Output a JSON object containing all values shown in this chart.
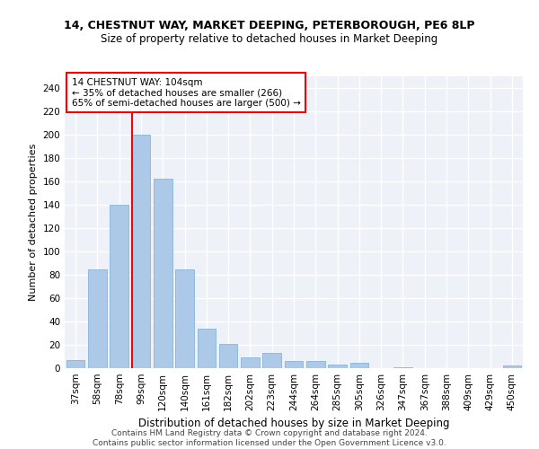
{
  "title1": "14, CHESTNUT WAY, MARKET DEEPING, PETERBOROUGH, PE6 8LP",
  "title2": "Size of property relative to detached houses in Market Deeping",
  "xlabel": "Distribution of detached houses by size in Market Deeping",
  "ylabel": "Number of detached properties",
  "categories": [
    "37sqm",
    "58sqm",
    "78sqm",
    "99sqm",
    "120sqm",
    "140sqm",
    "161sqm",
    "182sqm",
    "202sqm",
    "223sqm",
    "244sqm",
    "264sqm",
    "285sqm",
    "305sqm",
    "326sqm",
    "347sqm",
    "367sqm",
    "388sqm",
    "409sqm",
    "429sqm",
    "450sqm"
  ],
  "values": [
    7,
    85,
    140,
    200,
    162,
    85,
    34,
    21,
    9,
    13,
    6,
    6,
    3,
    5,
    0,
    1,
    0,
    0,
    0,
    0,
    2
  ],
  "bar_color": "#adc9e8",
  "bar_edge_color": "#8ab4d8",
  "vline_color": "red",
  "vline_pos": 3.5,
  "ylim": [
    0,
    250
  ],
  "yticks": [
    0,
    20,
    40,
    60,
    80,
    100,
    120,
    140,
    160,
    180,
    200,
    220,
    240
  ],
  "annotation_text": "14 CHESTNUT WAY: 104sqm\n← 35% of detached houses are smaller (266)\n65% of semi-detached houses are larger (500) →",
  "annotation_box_color": "white",
  "annotation_box_edge": "red",
  "footer": "Contains HM Land Registry data © Crown copyright and database right 2024.\nContains public sector information licensed under the Open Government Licence v3.0.",
  "bg_color": "#eef2f8",
  "title1_fontsize": 9,
  "title2_fontsize": 8.5,
  "xlabel_fontsize": 8.5,
  "ylabel_fontsize": 8,
  "tick_fontsize": 7.5,
  "annotation_fontsize": 7.5,
  "footer_fontsize": 6.5
}
